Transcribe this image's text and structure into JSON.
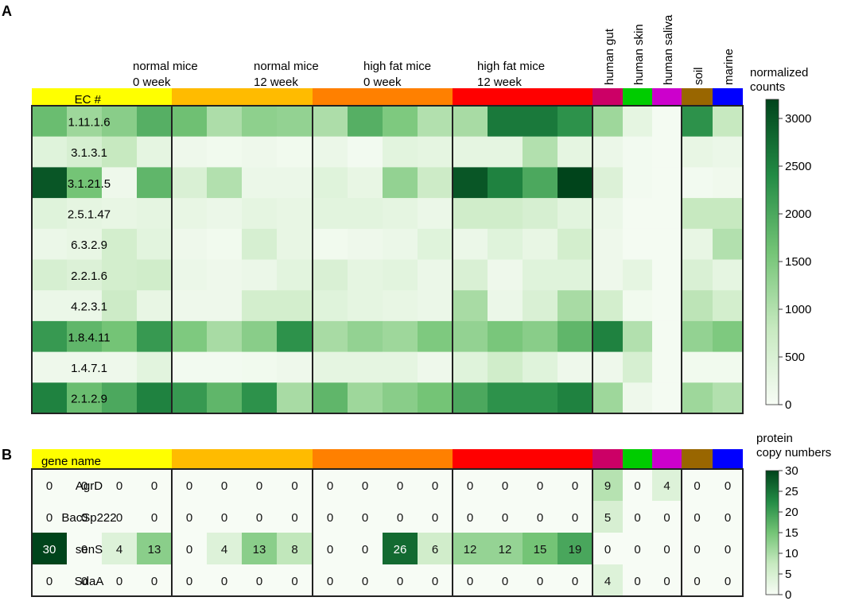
{
  "panel_a_label": "A",
  "panel_b_label": "B",
  "chart_data": [
    {
      "type": "heatmap",
      "panel": "A",
      "row_header": "EC #",
      "group_labels": [
        [
          "normal mice",
          "0 week"
        ],
        [
          "normal mice",
          "12 week"
        ],
        [
          "high fat mice",
          "0 week"
        ],
        [
          "high fat mice",
          "12 week"
        ],
        [
          "human gut"
        ],
        [
          "human skin"
        ],
        [
          "human saliva"
        ],
        [
          "soil"
        ],
        [
          "marine"
        ]
      ],
      "group_colors": [
        "#ffff00",
        "#ffbb00",
        "#ff8000",
        "#ff0000",
        "#cc0066",
        "#00cc00",
        "#cc00cc",
        "#996600",
        "#0000ff"
      ],
      "group_sizes": [
        4,
        4,
        4,
        4,
        1,
        1,
        1,
        1,
        1
      ],
      "rows": [
        "1.11.1.6",
        "3.1.3.1",
        "3.1.21.5",
        "2.5.1.47",
        "6.3.2.9",
        "2.2.1.6",
        "4.2.3.1",
        "1.8.4.11",
        "1.4.7.1",
        "2.1.2.9"
      ],
      "values": [
        [
          1700,
          1200,
          1400,
          1900,
          1650,
          1050,
          1350,
          1300,
          1050,
          1900,
          1500,
          1000,
          1100,
          2600,
          2600,
          2300,
          1200,
          300,
          50,
          2300,
          800
        ],
        [
          400,
          550,
          800,
          300,
          150,
          100,
          150,
          100,
          200,
          80,
          350,
          300,
          300,
          300,
          1000,
          300,
          200,
          80,
          50,
          250,
          200
        ],
        [
          3000,
          1600,
          150,
          1800,
          500,
          1000,
          200,
          200,
          400,
          250,
          1300,
          700,
          3000,
          2500,
          2000,
          3200,
          450,
          80,
          50,
          80,
          120
        ],
        [
          400,
          300,
          250,
          300,
          250,
          200,
          300,
          250,
          350,
          350,
          300,
          200,
          650,
          650,
          550,
          350,
          200,
          50,
          50,
          800,
          800
        ],
        [
          200,
          250,
          600,
          350,
          150,
          100,
          550,
          250,
          100,
          150,
          200,
          400,
          200,
          400,
          250,
          600,
          150,
          50,
          50,
          250,
          1000
        ],
        [
          550,
          450,
          600,
          650,
          200,
          150,
          200,
          350,
          500,
          300,
          350,
          200,
          500,
          150,
          400,
          400,
          150,
          300,
          50,
          500,
          300
        ],
        [
          200,
          200,
          700,
          250,
          150,
          150,
          600,
          600,
          400,
          300,
          250,
          200,
          1100,
          200,
          500,
          1100,
          600,
          100,
          50,
          900,
          600
        ],
        [
          2200,
          1800,
          1600,
          2200,
          1500,
          1100,
          1400,
          2300,
          1100,
          1300,
          1200,
          1500,
          1300,
          1550,
          1400,
          1800,
          2500,
          1000,
          50,
          1300,
          1500
        ],
        [
          150,
          150,
          150,
          350,
          80,
          80,
          100,
          150,
          300,
          300,
          300,
          150,
          400,
          650,
          400,
          150,
          150,
          550,
          50,
          100,
          100
        ],
        [
          2500,
          1700,
          2000,
          2500,
          2200,
          1800,
          2300,
          1100,
          1800,
          1200,
          1400,
          1600,
          2000,
          2300,
          2300,
          2500,
          1200,
          150,
          50,
          1200,
          1000
        ]
      ],
      "colorbar": {
        "title_lines": [
          "normalized",
          "counts"
        ],
        "range": [
          0,
          3200
        ],
        "ticks": [
          "0",
          "500",
          "1000",
          "1500",
          "2000",
          "2500",
          "3000"
        ],
        "tick_values": [
          0,
          500,
          1000,
          1500,
          2000,
          2500,
          3000
        ]
      }
    },
    {
      "type": "heatmap",
      "panel": "B",
      "row_header": "gene name",
      "group_colors": [
        "#ffff00",
        "#ffbb00",
        "#ff8000",
        "#ff0000",
        "#cc0066",
        "#00cc00",
        "#cc00cc",
        "#996600",
        "#0000ff"
      ],
      "group_sizes": [
        4,
        4,
        4,
        4,
        1,
        1,
        1,
        1,
        1
      ],
      "rows": [
        "AgrD",
        "BacSp222",
        "senS",
        "SdaA"
      ],
      "values": [
        [
          0,
          0,
          0,
          0,
          0,
          0,
          0,
          0,
          0,
          0,
          0,
          0,
          0,
          0,
          0,
          0,
          9,
          0,
          4,
          0,
          0
        ],
        [
          0,
          0,
          0,
          0,
          0,
          0,
          0,
          0,
          0,
          0,
          0,
          0,
          0,
          0,
          0,
          0,
          5,
          0,
          0,
          0,
          0
        ],
        [
          30,
          0,
          4,
          13,
          0,
          4,
          13,
          8,
          0,
          0,
          26,
          6,
          12,
          12,
          15,
          19,
          0,
          0,
          0,
          0,
          0
        ],
        [
          0,
          0,
          0,
          0,
          0,
          0,
          0,
          0,
          0,
          0,
          0,
          0,
          0,
          0,
          0,
          0,
          4,
          0,
          0,
          0,
          0
        ]
      ],
      "colorbar": {
        "title_lines": [
          "protein",
          "copy numbers"
        ],
        "range": [
          0,
          30
        ],
        "ticks": [
          "0",
          "5",
          "10",
          "15",
          "20",
          "25",
          "30"
        ],
        "tick_values": [
          0,
          5,
          10,
          15,
          20,
          25,
          30
        ]
      }
    }
  ]
}
